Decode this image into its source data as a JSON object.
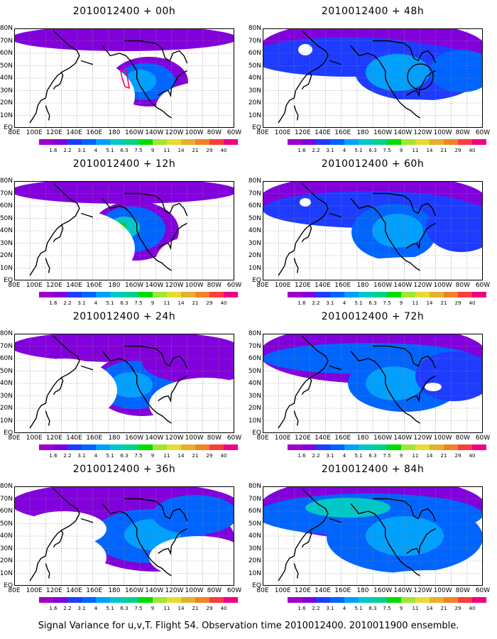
{
  "footer": "Signal Variance for u,v,T. Flight 54. Observation time 2010012400. 2010011900 ensemble.",
  "lat_labels": [
    "80N",
    "70N",
    "60N",
    "50N",
    "40N",
    "30N",
    "20N",
    "10N",
    "EQ"
  ],
  "lon_labels": [
    "80E",
    "100E",
    "120E",
    "140E",
    "160E",
    "180",
    "160W",
    "140W",
    "120W",
    "100W",
    "80W",
    "60W"
  ],
  "colorbar": {
    "levels": [
      "1.6",
      "2.2",
      "3.1",
      "4",
      "5.1",
      "6.3",
      "7.5",
      "9",
      "11",
      "14",
      "21",
      "29",
      "40"
    ],
    "colors": [
      "#a000c8",
      "#8200dc",
      "#1e3cff",
      "#0064ff",
      "#00a0ff",
      "#00c8c8",
      "#00d28c",
      "#00dc00",
      "#a0e632",
      "#e6dc32",
      "#e6af2d",
      "#f08228",
      "#fa3c3c",
      "#f00082"
    ]
  },
  "panels": [
    {
      "title": "2010012400 + 00h"
    },
    {
      "title": "2010012400 + 48h"
    },
    {
      "title": "2010012400 + 12h"
    },
    {
      "title": "2010012400 + 60h"
    },
    {
      "title": "2010012400 + 24h"
    },
    {
      "title": "2010012400 + 72h"
    },
    {
      "title": "2010012400 + 36h"
    },
    {
      "title": "2010012400 + 84h"
    }
  ]
}
